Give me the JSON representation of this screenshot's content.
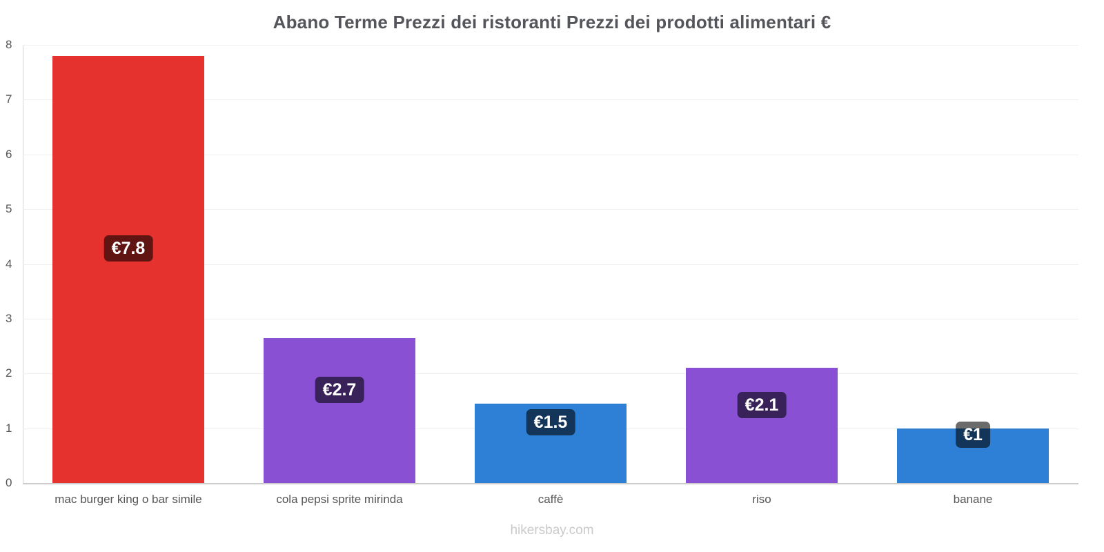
{
  "title": "Abano Terme Prezzi dei ristoranti Prezzi dei prodotti alimentari €",
  "watermark": "hikersbay.com",
  "chart_data": {
    "type": "bar",
    "title": "Abano Terme Prezzi dei ristoranti Prezzi dei prodotti alimentari €",
    "categories": [
      "mac burger king o bar simile",
      "cola pepsi sprite mirinda",
      "caffè",
      "riso",
      "banane"
    ],
    "values": [
      7.8,
      2.65,
      1.45,
      2.1,
      1.0
    ],
    "value_labels": [
      "€7.8",
      "€2.7",
      "€1.5",
      "€2.1",
      "€1"
    ],
    "bar_colors": [
      "#e5322e",
      "#8950d4",
      "#2e7fd6",
      "#8950d4",
      "#2e7fd6"
    ],
    "badge_color": "rgba(0,0,0,0.58)",
    "ylim": [
      0,
      8
    ],
    "yticks": [
      0,
      1,
      2,
      3,
      4,
      5,
      6,
      7,
      8
    ],
    "xlabel": "",
    "ylabel": "",
    "grid": true,
    "legend": false,
    "currency": "€"
  }
}
